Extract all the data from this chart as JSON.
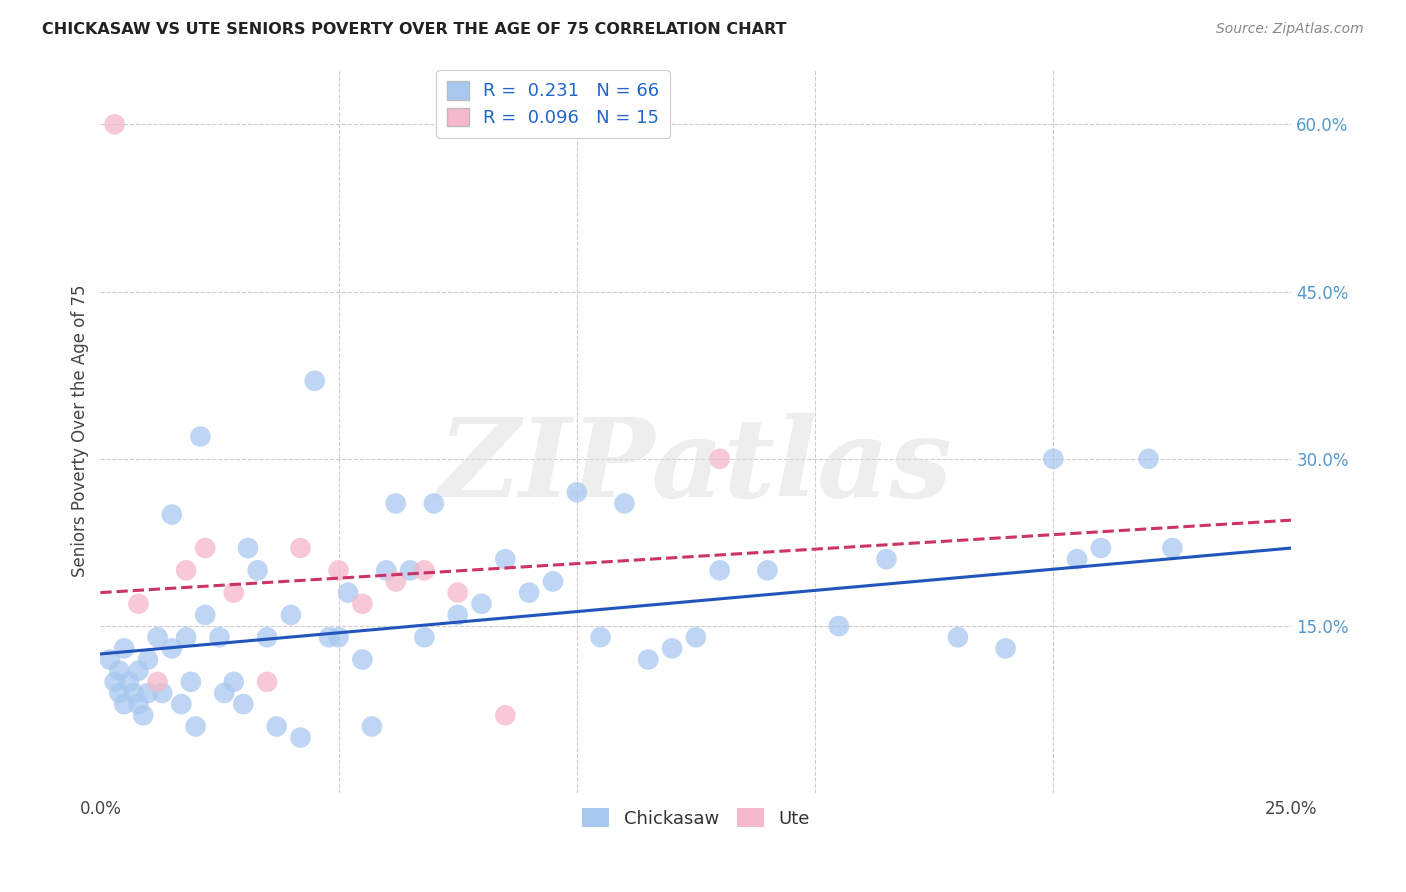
{
  "title": "CHICKASAW VS UTE SENIORS POVERTY OVER THE AGE OF 75 CORRELATION CHART",
  "source": "Source: ZipAtlas.com",
  "ylabel": "Seniors Poverty Over the Age of 75",
  "chickasaw_color": "#a8c8f0",
  "ute_color": "#f5b8cc",
  "chickasaw_line_color": "#2255bb",
  "ute_line_color": "#cc3366",
  "chickasaw_R": 0.231,
  "chickasaw_N": 66,
  "ute_R": 0.096,
  "ute_N": 15,
  "legend_label_1": "Chickasaw",
  "legend_label_2": "Ute",
  "watermark": "ZIPatlas",
  "chickasaw_x": [
    0.002,
    0.003,
    0.004,
    0.004,
    0.005,
    0.005,
    0.006,
    0.007,
    0.008,
    0.008,
    0.009,
    0.01,
    0.01,
    0.012,
    0.013,
    0.015,
    0.015,
    0.017,
    0.018,
    0.019,
    0.02,
    0.021,
    0.022,
    0.025,
    0.026,
    0.028,
    0.03,
    0.031,
    0.033,
    0.035,
    0.037,
    0.04,
    0.042,
    0.045,
    0.048,
    0.05,
    0.052,
    0.055,
    0.057,
    0.06,
    0.062,
    0.065,
    0.068,
    0.07,
    0.075,
    0.08,
    0.085,
    0.09,
    0.095,
    0.1,
    0.105,
    0.11,
    0.115,
    0.12,
    0.125,
    0.13,
    0.14,
    0.155,
    0.165,
    0.18,
    0.19,
    0.2,
    0.205,
    0.21,
    0.22,
    0.225
  ],
  "chickasaw_y": [
    0.12,
    0.1,
    0.09,
    0.11,
    0.08,
    0.13,
    0.1,
    0.09,
    0.08,
    0.11,
    0.07,
    0.09,
    0.12,
    0.14,
    0.09,
    0.13,
    0.25,
    0.08,
    0.14,
    0.1,
    0.06,
    0.32,
    0.16,
    0.14,
    0.09,
    0.1,
    0.08,
    0.22,
    0.2,
    0.14,
    0.06,
    0.16,
    0.05,
    0.37,
    0.14,
    0.14,
    0.18,
    0.12,
    0.06,
    0.2,
    0.26,
    0.2,
    0.14,
    0.26,
    0.16,
    0.17,
    0.21,
    0.18,
    0.19,
    0.27,
    0.14,
    0.26,
    0.12,
    0.13,
    0.14,
    0.2,
    0.2,
    0.15,
    0.21,
    0.14,
    0.13,
    0.3,
    0.21,
    0.22,
    0.3,
    0.22
  ],
  "ute_x": [
    0.003,
    0.008,
    0.012,
    0.018,
    0.022,
    0.028,
    0.035,
    0.042,
    0.05,
    0.055,
    0.062,
    0.068,
    0.075,
    0.085,
    0.13
  ],
  "ute_y": [
    0.6,
    0.17,
    0.1,
    0.2,
    0.22,
    0.18,
    0.1,
    0.22,
    0.2,
    0.17,
    0.19,
    0.2,
    0.18,
    0.07,
    0.3
  ],
  "xlim": [
    0.0,
    0.25
  ],
  "ylim": [
    0.0,
    0.65
  ],
  "xtick_positions": [
    0.0,
    0.05,
    0.1,
    0.15,
    0.2,
    0.25
  ],
  "xticklabels": [
    "0.0%",
    "",
    "",
    "",
    "",
    "25.0%"
  ],
  "ytick_positions": [
    0.15,
    0.3,
    0.45,
    0.6
  ],
  "yticklabels": [
    "15.0%",
    "30.0%",
    "45.0%",
    "60.0%"
  ]
}
